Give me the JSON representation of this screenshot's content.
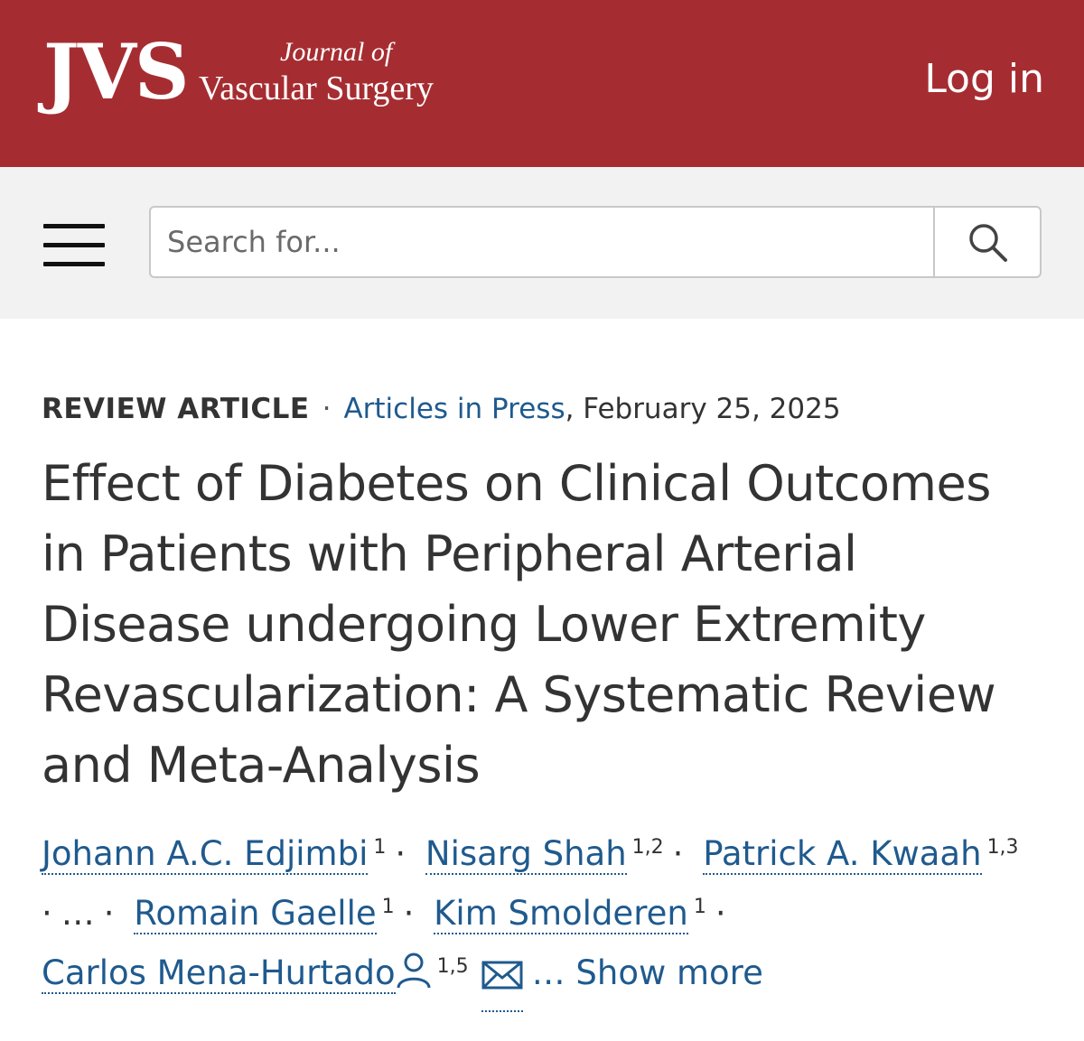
{
  "header": {
    "logo_mark": "JVS",
    "logo_journal": "Journal of",
    "logo_name": "Vascular Surgery",
    "login_label": "Log in",
    "colors": {
      "brand": "#a52d31",
      "link": "#1f5a8e"
    }
  },
  "search": {
    "placeholder": "Search for...",
    "menu_icon": "hamburger-icon",
    "button_icon": "search-icon"
  },
  "article": {
    "type": "REVIEW ARTICLE",
    "separator": "·",
    "section": "Articles in Press",
    "date": ", February 25, 2025",
    "title": "Effect of Diabetes on Clinical Outcomes in Patients with Peripheral Arterial Disease undergoing Lower Extremity Revascularization: A Systematic Review and Meta-Analysis",
    "authors": [
      {
        "name": "Johann A.C. Edjimbi",
        "aff": "1"
      },
      {
        "name": "Nisarg Shah",
        "aff": "1,2"
      },
      {
        "name": "Patrick A. Kwaah",
        "aff": "1,3"
      },
      {
        "name": "Romain Gaelle",
        "aff": "1"
      },
      {
        "name": "Kim Smolderen",
        "aff": "1"
      },
      {
        "name": "Carlos Mena-Hurtado",
        "aff": "1,5"
      }
    ],
    "ellipsis": "…",
    "show_more": "… Show more",
    "corresponding_icon": "person-icon",
    "email_icon": "mail-icon"
  }
}
